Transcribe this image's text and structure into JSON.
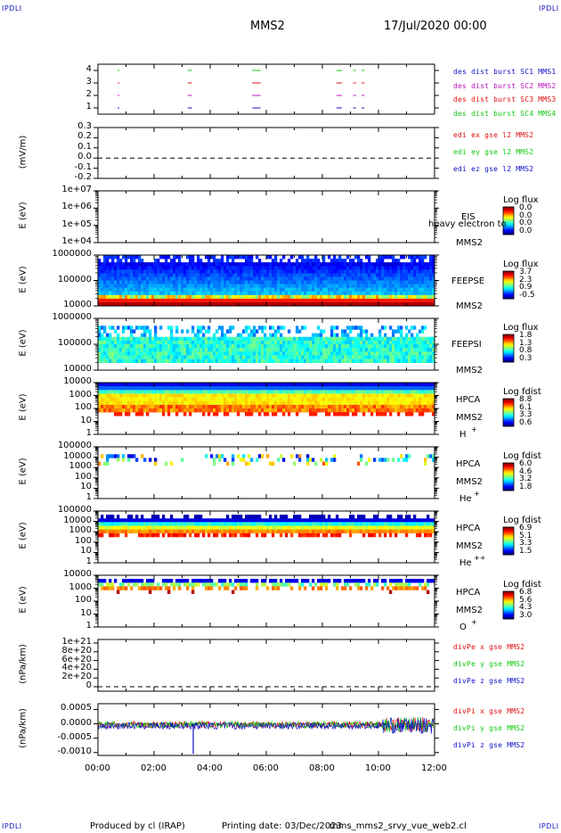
{
  "corners": {
    "tl": "IPDLI",
    "tr": "IPDLI",
    "bl": "IPDLI",
    "br": "IPDLI"
  },
  "header": {
    "spacecraft": "MMS2",
    "date": "17/Jul/2020 00:00"
  },
  "footer": {
    "produced": "Produced by cl (IRAP)",
    "printing": "Printing date: 03/Dec/2023",
    "file": "mms_mms2_srvy_vue_web2.cl"
  },
  "time_axis": [
    "00:00",
    "02:00",
    "04:00",
    "06:00",
    "08:00",
    "10:00",
    "12:00"
  ],
  "colors": {
    "frame": "#000000",
    "blue": "#1010c8",
    "red": "#e01010",
    "green": "#10c810",
    "magenta": "#c010c0"
  },
  "chart_data": [
    {
      "id": "burst",
      "type": "scatter",
      "yticks": [
        "4",
        "3",
        "2",
        "1"
      ],
      "series": [
        {
          "name": "des dist burst SC1 MMS1",
          "color": "#1010c8"
        },
        {
          "name": "des dist burst SC2 MMS2",
          "color": "#c010c0"
        },
        {
          "name": "des dist burst SC3 MMS3",
          "color": "#e01010"
        },
        {
          "name": "des dist burst SC4 MMS4",
          "color": "#10c810"
        }
      ],
      "intervals_hours": [
        [
          0.7,
          0.75
        ],
        [
          3.2,
          3.35
        ],
        [
          5.5,
          5.8
        ],
        [
          8.5,
          8.7
        ],
        [
          9.1,
          9.2
        ],
        [
          9.4,
          9.5
        ]
      ]
    },
    {
      "id": "edi",
      "type": "line",
      "ylabel": "(mV/m)",
      "yticks": [
        "0.3",
        "0.2",
        "0.1",
        "0.0",
        "-0.1",
        "-0.2"
      ],
      "ylim": [
        -0.2,
        0.3
      ],
      "series": [
        {
          "name": "edi ex gse l2 MMS2",
          "color": "#e01010"
        },
        {
          "name": "edi ey gse l2 MMS2",
          "color": "#10c810"
        },
        {
          "name": "edi ez gse l2 MMS2",
          "color": "#1010c8"
        }
      ]
    },
    {
      "id": "eis",
      "type": "heatmap",
      "ylabel": "E (eV)",
      "yticks": [
        "1e+07",
        "1e+06",
        "1e+05",
        "1e+04"
      ],
      "instrument": "EIS",
      "sub": "MMS2",
      "note": "heavy electron to",
      "cbar_title": "Log flux",
      "cbar_values": [
        "0.0",
        "0.0",
        "0.0",
        "0.0"
      ]
    },
    {
      "id": "feepse",
      "type": "heatmap",
      "ylabel": "E (eV)",
      "yticks": [
        "1000000",
        "100000",
        "10000"
      ],
      "instrument": "FEEPSE",
      "sub": "MMS2",
      "cbar_title": "Log flux",
      "cbar_values": [
        "3.7",
        "2.3",
        "0.9",
        "-0.5"
      ]
    },
    {
      "id": "feepsi",
      "type": "heatmap",
      "ylabel": "E (eV)",
      "yticks": [
        "1000000",
        "100000",
        "10000"
      ],
      "instrument": "FEEPSI",
      "sub": "MMS2",
      "cbar_title": "Log flux",
      "cbar_values": [
        "1.8",
        "1.3",
        "0.8",
        "0.3"
      ]
    },
    {
      "id": "hpca_h",
      "type": "heatmap",
      "ylabel": "E (eV)",
      "yticks": [
        "10000",
        "1000",
        "100",
        "10",
        "1"
      ],
      "instrument": "HPCA",
      "sub": "MMS2",
      "species": "H",
      "charge": "+",
      "cbar_title": "Log fdist",
      "cbar_values": [
        "8.8",
        "6.1",
        "3.3",
        "0.6"
      ]
    },
    {
      "id": "hpca_he",
      "type": "heatmap",
      "ylabel": "E (eV)",
      "yticks": [
        "100000",
        "10000",
        "1000",
        "100",
        "10",
        "1"
      ],
      "instrument": "HPCA",
      "sub": "MMS2",
      "species": "He",
      "charge": "+",
      "cbar_title": "Log fdist",
      "cbar_values": [
        "6.0",
        "4.6",
        "3.2",
        "1.8"
      ]
    },
    {
      "id": "hpca_he2",
      "type": "heatmap",
      "ylabel": "E (eV)",
      "yticks": [
        "100000",
        "10000",
        "1000",
        "100",
        "10",
        "1"
      ],
      "instrument": "HPCA",
      "sub": "MMS2",
      "species": "He",
      "charge": "++",
      "cbar_title": "Log fdist",
      "cbar_values": [
        "6.9",
        "5.1",
        "3.3",
        "1.5"
      ]
    },
    {
      "id": "hpca_o",
      "type": "heatmap",
      "ylabel": "E (eV)",
      "yticks": [
        "10000",
        "1000",
        "100",
        "10",
        "1"
      ],
      "instrument": "HPCA",
      "sub": "MMS2",
      "species": "O",
      "charge": "+",
      "cbar_title": "Log fdist",
      "cbar_values": [
        "6.8",
        "5.6",
        "4.3",
        "3.0"
      ]
    },
    {
      "id": "divpe",
      "type": "line",
      "ylabel": "(nPa/km)",
      "yticks": [
        "1e+21",
        "8e+20",
        "6e+20",
        "4e+20",
        "2e+20",
        "0"
      ],
      "series": [
        {
          "name": "divPe x gse MMS2",
          "color": "#e01010"
        },
        {
          "name": "divPe y gse MMS2",
          "color": "#10c810"
        },
        {
          "name": "divPe z gse MMS2",
          "color": "#1010c8"
        }
      ]
    },
    {
      "id": "divpi",
      "type": "line",
      "ylabel": "(nPa/km)",
      "yticks": [
        "0.0005",
        "0.0000",
        "-0.0005",
        "-0.0010"
      ],
      "ylim": [
        -0.0011,
        0.0007
      ],
      "series": [
        {
          "name": "divPi x gse MMS2",
          "color": "#e01010"
        },
        {
          "name": "divPi y gse MMS2",
          "color": "#10c810"
        },
        {
          "name": "divPi z gse MMS2",
          "color": "#1010c8"
        }
      ]
    }
  ]
}
